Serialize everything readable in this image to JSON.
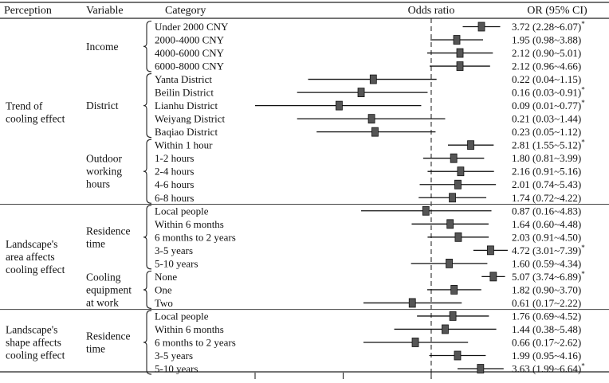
{
  "chart_data": {
    "type": "forest",
    "title": "",
    "headers": {
      "perception": "Perception",
      "variable": "Variable",
      "category": "Category",
      "effect": "Odds ratio",
      "or_ci": "OR (95% CI)"
    },
    "reference_value": 1,
    "x_scale": "log",
    "xlim": [
      0.01,
      7.4
    ],
    "significance_marker": "*",
    "groups": [
      {
        "perception": [
          "Trend of",
          "cooling effect"
        ],
        "variables": [
          {
            "name": [
              "Income"
            ],
            "rows": [
              {
                "category": "Under 2000 CNY",
                "or": 3.72,
                "lower": 2.28,
                "upper": 6.07,
                "label": "3.72 (2.28~6.07)",
                "significant": true
              },
              {
                "category": "2000-4000 CNY",
                "or": 1.95,
                "lower": 0.98,
                "upper": 3.88,
                "label": "1.95 (0.98~3.88)",
                "significant": false
              },
              {
                "category": "4000-6000 CNY",
                "or": 2.12,
                "lower": 0.9,
                "upper": 5.01,
                "label": "2.12 (0.90~5.01)",
                "significant": false
              },
              {
                "category": "6000-8000 CNY",
                "or": 2.12,
                "lower": 0.96,
                "upper": 4.66,
                "label": "2.12 (0.96~4.66)",
                "significant": false
              }
            ]
          },
          {
            "name": [
              "District"
            ],
            "rows": [
              {
                "category": "Yanta District",
                "or": 0.22,
                "lower": 0.04,
                "upper": 1.15,
                "label": "0.22 (0.04~1.15)",
                "significant": false
              },
              {
                "category": "Beilin District",
                "or": 0.16,
                "lower": 0.03,
                "upper": 0.91,
                "label": "0.16 (0.03~0.91)",
                "significant": true
              },
              {
                "category": "Lianhu District",
                "or": 0.09,
                "lower": 0.01,
                "upper": 0.77,
                "label": "0.09 (0.01~0.77)",
                "significant": true
              },
              {
                "category": "Weiyang District",
                "or": 0.21,
                "lower": 0.03,
                "upper": 1.44,
                "label": "0.21 (0.03~1.44)",
                "significant": false
              },
              {
                "category": "Baqiao District",
                "or": 0.23,
                "lower": 0.05,
                "upper": 1.12,
                "label": "0.23 (0.05~1.12)",
                "significant": false
              }
            ]
          },
          {
            "name": [
              "Outdoor",
              "working",
              "hours"
            ],
            "rows": [
              {
                "category": "Within 1 hour",
                "or": 2.81,
                "lower": 1.55,
                "upper": 5.12,
                "label": "2.81 (1.55~5.12)",
                "significant": true
              },
              {
                "category": "1-2 hours",
                "or": 1.8,
                "lower": 0.81,
                "upper": 3.99,
                "label": "1.80 (0.81~3.99)",
                "significant": false
              },
              {
                "category": "2-4 hours",
                "or": 2.16,
                "lower": 0.91,
                "upper": 5.16,
                "label": "2.16 (0.91~5.16)",
                "significant": false
              },
              {
                "category": "4-6 hours",
                "or": 2.01,
                "lower": 0.74,
                "upper": 5.43,
                "label": "2.01 (0.74~5.43)",
                "significant": false
              },
              {
                "category": "6-8 hours",
                "or": 1.74,
                "lower": 0.72,
                "upper": 4.22,
                "label": "1.74 (0.72~4.22)",
                "significant": false
              }
            ]
          }
        ]
      },
      {
        "perception": [
          "Landscape's",
          "area affects",
          "cooling effect"
        ],
        "variables": [
          {
            "name": [
              "Residence",
              "time"
            ],
            "rows": [
              {
                "category": "Local people",
                "or": 0.87,
                "lower": 0.16,
                "upper": 4.83,
                "label": "0.87 (0.16~4.83)",
                "significant": false
              },
              {
                "category": "Within 6 months",
                "or": 1.64,
                "lower": 0.6,
                "upper": 4.48,
                "label": "1.64 (0.60~4.48)",
                "significant": false
              },
              {
                "category": "6 months to 2 years",
                "or": 2.03,
                "lower": 0.91,
                "upper": 4.5,
                "label": "2.03 (0.91~4.50)",
                "significant": false
              },
              {
                "category": "3-5 years",
                "or": 4.72,
                "lower": 3.01,
                "upper": 7.39,
                "label": "4.72 (3.01~7.39)",
                "significant": true
              },
              {
                "category": "5-10 years",
                "or": 1.6,
                "lower": 0.59,
                "upper": 4.34,
                "label": "1.60 (0.59~4.34)",
                "significant": false
              }
            ]
          },
          {
            "name": [
              "Cooling",
              "equipment",
              "at work"
            ],
            "rows": [
              {
                "category": "None",
                "or": 5.07,
                "lower": 3.74,
                "upper": 6.89,
                "label": "5.07 (3.74~6.89)",
                "significant": true
              },
              {
                "category": "One",
                "or": 1.82,
                "lower": 0.9,
                "upper": 3.7,
                "label": "1.82 (0.90~3.70)",
                "significant": false
              },
              {
                "category": "Two",
                "or": 0.61,
                "lower": 0.17,
                "upper": 2.22,
                "label": "0.61 (0.17~2.22)",
                "significant": false
              }
            ]
          }
        ]
      },
      {
        "perception": [
          "Landscape's",
          "shape affects",
          "cooling effect"
        ],
        "variables": [
          {
            "name": [
              "Residence",
              "time"
            ],
            "rows": [
              {
                "category": "Local people",
                "or": 1.76,
                "lower": 0.69,
                "upper": 4.52,
                "label": "1.76 (0.69~4.52)",
                "significant": false
              },
              {
                "category": "Within 6 months",
                "or": 1.44,
                "lower": 0.38,
                "upper": 5.48,
                "label": "1.44 (0.38~5.48)",
                "significant": false
              },
              {
                "category": "6 months to 2 years",
                "or": 0.66,
                "lower": 0.17,
                "upper": 2.62,
                "label": "0.66 (0.17~2.62)",
                "significant": false
              },
              {
                "category": "3-5 years",
                "or": 1.99,
                "lower": 0.95,
                "upper": 4.16,
                "label": "1.99 (0.95~4.16)",
                "significant": false
              },
              {
                "category": "5-10 years",
                "or": 3.63,
                "lower": 1.99,
                "upper": 6.64,
                "label": "3.63 (1.99~6.64)",
                "significant": true
              }
            ]
          }
        ]
      }
    ]
  }
}
